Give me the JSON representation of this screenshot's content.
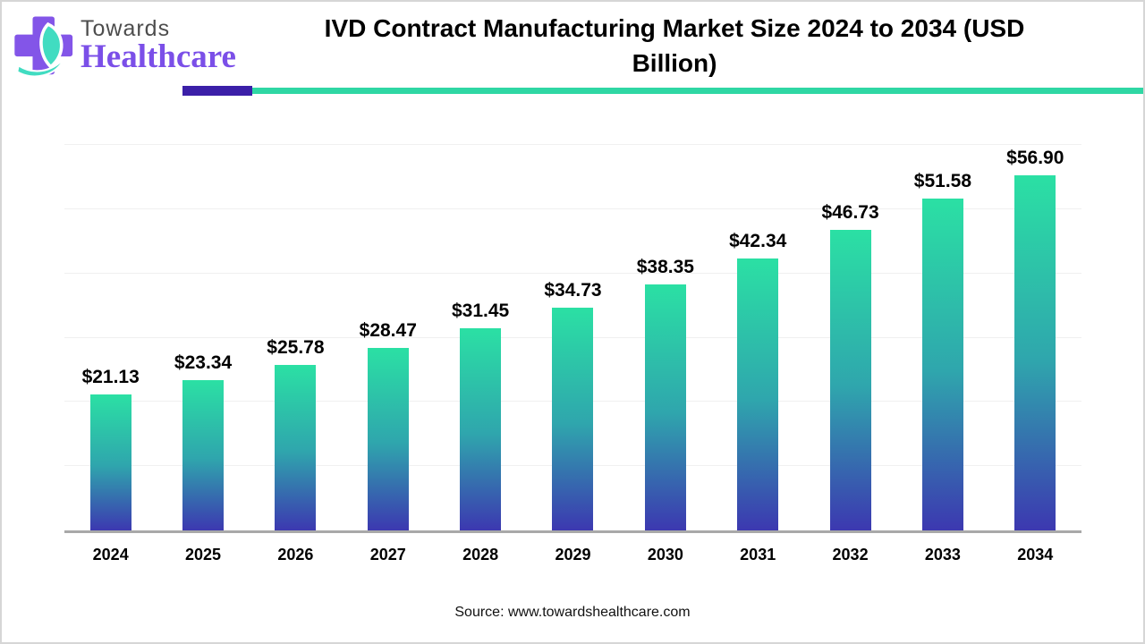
{
  "logo": {
    "towards": "Towards",
    "healthcare": "Healthcare",
    "cross_color": "#8355e8",
    "leaf_color": "#41dcc1",
    "towards_color": "#4d4d4d",
    "healthcare_color": "#7b4fe8"
  },
  "header": {
    "title": "IVD Contract Manufacturing Market Size 2024 to 2034 (USD Billion)"
  },
  "decor": {
    "rule_purple_color": "#3b1fa8",
    "rule_teal_color": "#2fd7a4"
  },
  "chart_data": {
    "type": "bar",
    "title": "IVD Contract Manufacturing Market Size 2024 to 2034 (USD Billion)",
    "categories": [
      "2024",
      "2025",
      "2026",
      "2027",
      "2028",
      "2029",
      "2030",
      "2031",
      "2032",
      "2033",
      "2034"
    ],
    "values": [
      21.13,
      23.34,
      25.78,
      28.47,
      31.45,
      34.73,
      38.35,
      42.34,
      46.73,
      51.58,
      56.9
    ],
    "value_prefix": "$",
    "xlabel": "",
    "ylabel": "",
    "ylim": [
      0,
      60
    ],
    "gridline_step": 10,
    "grid": "horizontal",
    "legend": "none",
    "bar_gradient_top": "#2be0a4",
    "bar_gradient_mid": "#2fa6ad",
    "bar_gradient_bottom": "#3c38b0",
    "axis_color": "#a8a8a8",
    "grid_color": "#f0f0f0"
  },
  "footer": {
    "source": "Source: www.towardshealthcare.com"
  }
}
